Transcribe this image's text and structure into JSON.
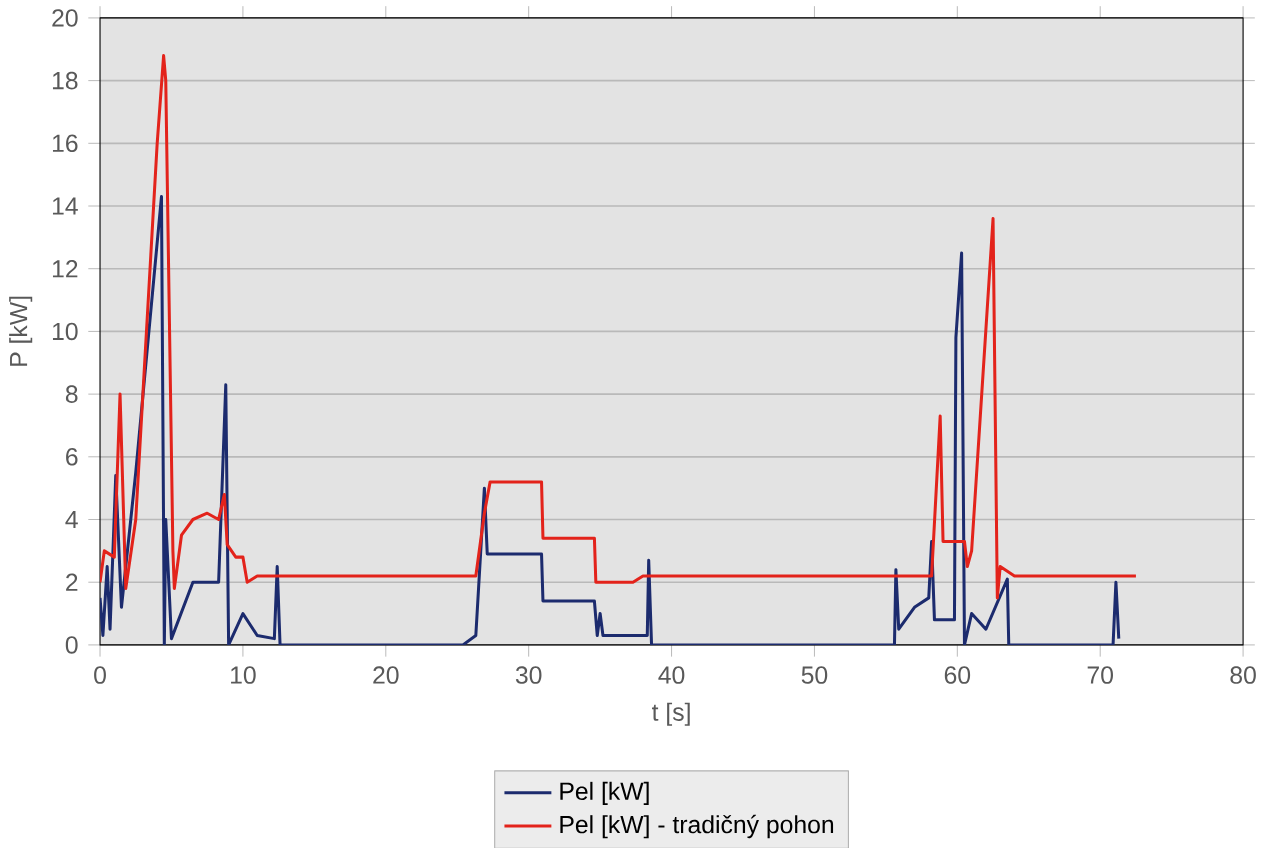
{
  "chart_data": {
    "type": "line",
    "xlabel": "t [s]",
    "ylabel": "P [kW]",
    "xlim": [
      0,
      80
    ],
    "xticks": [
      0,
      10,
      20,
      30,
      40,
      50,
      60,
      70,
      80
    ],
    "ylim": [
      0,
      20
    ],
    "yticks": [
      0,
      2,
      4,
      6,
      8,
      10,
      12,
      14,
      16,
      18,
      20
    ],
    "grid": "y",
    "legend": "bottom",
    "marker": "none",
    "line_style": "solid",
    "series": [
      {
        "name": "Pel [kW]",
        "color": "#1c2b6e",
        "x": [
          0,
          0.2,
          0.5,
          0.7,
          1.1,
          1.5,
          2.5,
          4.3,
          4.5,
          4.6,
          5,
          6.5,
          8.3,
          8.8,
          9,
          10,
          11,
          12.2,
          12.4,
          12.6,
          25.4,
          26.3,
          26.9,
          27.1,
          30.9,
          31,
          34.6,
          34.8,
          35,
          35.2,
          38.3,
          38.4,
          38.6,
          55.6,
          55.7,
          55.9,
          57,
          58,
          58.2,
          58.4,
          59.8,
          59.9,
          60.3,
          60.5,
          61,
          62,
          63.5,
          63.6,
          70.9,
          71.1,
          71.3
        ],
        "values": [
          1.5,
          0.3,
          2.5,
          0.5,
          5.4,
          1.2,
          5.5,
          14.3,
          0,
          4,
          0.2,
          2,
          2,
          8.3,
          0,
          1,
          0.3,
          0.2,
          2.5,
          0,
          0,
          0.3,
          5,
          2.9,
          2.9,
          1.4,
          1.4,
          0.3,
          1,
          0.3,
          0.3,
          2.7,
          0,
          0,
          2.4,
          0.5,
          1.2,
          1.5,
          3.3,
          0.8,
          0.8,
          9.8,
          12.5,
          0,
          1,
          0.5,
          2.1,
          0,
          0,
          2,
          0.2
        ]
      },
      {
        "name": "Pel [kW] - tradičný pohon",
        "color": "#e3231b",
        "x": [
          0,
          0.3,
          1,
          1.4,
          1.8,
          2.5,
          4,
          4.45,
          4.6,
          5.1,
          5.2,
          5.7,
          6.5,
          7.5,
          8.3,
          8.7,
          8.9,
          9.5,
          10,
          10.3,
          11,
          26.3,
          26.9,
          27.3,
          30.9,
          31,
          34.6,
          34.7,
          37.3,
          38,
          58.2,
          58.8,
          59,
          60.5,
          60.7,
          61,
          62.5,
          62.8,
          63,
          64,
          72.5
        ],
        "values": [
          2,
          3,
          2.8,
          8,
          1.8,
          4,
          16,
          18.8,
          18,
          3,
          1.8,
          3.5,
          4,
          4.2,
          4,
          4.8,
          3.2,
          2.8,
          2.8,
          2,
          2.2,
          2.2,
          4.2,
          5.2,
          5.2,
          3.4,
          3.4,
          2,
          2,
          2.2,
          2.2,
          7.3,
          3.3,
          3.3,
          2.5,
          3,
          13.6,
          1.5,
          2.5,
          2.2,
          2.2
        ]
      }
    ]
  }
}
